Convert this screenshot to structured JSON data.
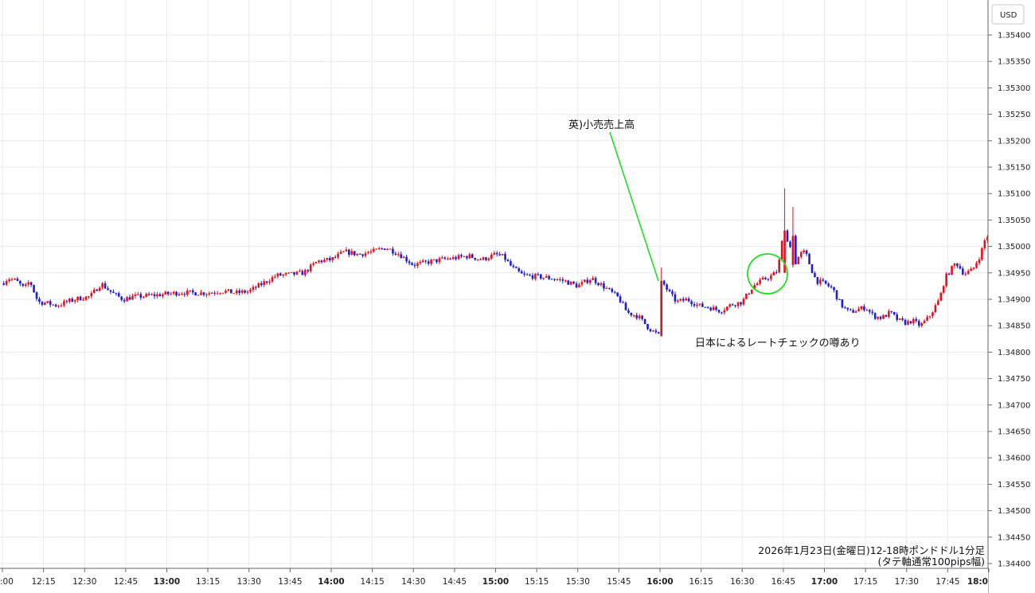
{
  "chart_data": {
    "type": "candlestick",
    "currency": "USD",
    "caption_line1": "2026年1月23日(金曜日)12-18時ポンドドル1分足",
    "caption_line2": "(タテ軸通常100pips幅)",
    "annotations": [
      {
        "text": "英)小売売上高",
        "target_time": "16:00",
        "target_price": 1.3495
      },
      {
        "text": "日本によるレートチェックの噂あり",
        "highlight_time": "16:37",
        "highlight_price": 1.3495
      }
    ],
    "ylim": [
      1.34385,
      1.35425
    ],
    "y_ticks": [
      "1.35400",
      "1.35350",
      "1.35300",
      "1.35250",
      "1.35200",
      "1.35150",
      "1.35100",
      "1.35050",
      "1.35000",
      "1.34950",
      "1.34900",
      "1.34850",
      "1.34800",
      "1.34750",
      "1.34700",
      "1.34650",
      "1.34600",
      "1.34550",
      "1.34500",
      "1.34450",
      "1.34400"
    ],
    "x_ticks": [
      {
        "label": ":00",
        "hour": false
      },
      {
        "label": "12:15",
        "hour": false
      },
      {
        "label": "12:30",
        "hour": false
      },
      {
        "label": "12:45",
        "hour": false
      },
      {
        "label": "13:00",
        "hour": true
      },
      {
        "label": "13:15",
        "hour": false
      },
      {
        "label": "13:30",
        "hour": false
      },
      {
        "label": "13:45",
        "hour": false
      },
      {
        "label": "14:00",
        "hour": true
      },
      {
        "label": "14:15",
        "hour": false
      },
      {
        "label": "14:30",
        "hour": false
      },
      {
        "label": "14:45",
        "hour": false
      },
      {
        "label": "15:00",
        "hour": true
      },
      {
        "label": "15:15",
        "hour": false
      },
      {
        "label": "15:30",
        "hour": false
      },
      {
        "label": "15:45",
        "hour": false
      },
      {
        "label": "16:00",
        "hour": true
      },
      {
        "label": "16:15",
        "hour": false
      },
      {
        "label": "16:30",
        "hour": false
      },
      {
        "label": "16:45",
        "hour": false
      },
      {
        "label": "17:00",
        "hour": true
      },
      {
        "label": "17:15",
        "hour": false
      },
      {
        "label": "17:30",
        "hour": false
      },
      {
        "label": "17:45",
        "hour": false
      },
      {
        "label": "18:0",
        "hour": true
      }
    ],
    "series_points": [
      [
        "12:00",
        1.3493
      ],
      [
        "12:02",
        1.3494
      ],
      [
        "12:05",
        1.34935
      ],
      [
        "12:08",
        1.3492
      ],
      [
        "12:10",
        1.34935
      ],
      [
        "12:13",
        1.34895
      ],
      [
        "12:16",
        1.34893
      ],
      [
        "12:20",
        1.34888
      ],
      [
        "12:24",
        1.34896
      ],
      [
        "12:28",
        1.34902
      ],
      [
        "12:32",
        1.34905
      ],
      [
        "12:36",
        1.3493
      ],
      [
        "12:40",
        1.34912
      ],
      [
        "12:44",
        1.349
      ],
      [
        "12:48",
        1.34905
      ],
      [
        "12:52",
        1.34906
      ],
      [
        "12:56",
        1.34908
      ],
      [
        "13:00",
        1.3491
      ],
      [
        "13:05",
        1.34913
      ],
      [
        "13:10",
        1.34912
      ],
      [
        "13:15",
        1.34912
      ],
      [
        "13:20",
        1.34916
      ],
      [
        "13:25",
        1.34912
      ],
      [
        "13:30",
        1.34915
      ],
      [
        "13:35",
        1.3493
      ],
      [
        "13:40",
        1.34945
      ],
      [
        "13:45",
        1.34947
      ],
      [
        "13:50",
        1.3495
      ],
      [
        "13:55",
        1.34972
      ],
      [
        "14:00",
        1.34975
      ],
      [
        "14:05",
        1.3499
      ],
      [
        "14:10",
        1.34985
      ],
      [
        "14:15",
        1.3499
      ],
      [
        "14:20",
        1.34998
      ],
      [
        "14:25",
        1.34985
      ],
      [
        "14:30",
        1.34965
      ],
      [
        "14:35",
        1.3497
      ],
      [
        "14:40",
        1.34975
      ],
      [
        "14:45",
        1.34978
      ],
      [
        "14:50",
        1.34982
      ],
      [
        "14:55",
        1.34975
      ],
      [
        "15:00",
        1.34985
      ],
      [
        "15:03",
        1.3498
      ],
      [
        "15:06",
        1.3496
      ],
      [
        "15:10",
        1.34945
      ],
      [
        "15:15",
        1.34943
      ],
      [
        "15:20",
        1.3494
      ],
      [
        "15:25",
        1.34935
      ],
      [
        "15:30",
        1.34925
      ],
      [
        "15:35",
        1.3494
      ],
      [
        "15:40",
        1.34922
      ],
      [
        "15:45",
        1.34902
      ],
      [
        "15:48",
        1.34875
      ],
      [
        "15:52",
        1.34868
      ],
      [
        "15:56",
        1.34845
      ],
      [
        "16:00",
        1.3483
      ],
      [
        "16:00",
        1.3494
      ],
      [
        "16:03",
        1.34915
      ],
      [
        "16:06",
        1.34895
      ],
      [
        "16:10",
        1.349
      ],
      [
        "16:14",
        1.34888
      ],
      [
        "16:18",
        1.34885
      ],
      [
        "16:22",
        1.34878
      ],
      [
        "16:26",
        1.3489
      ],
      [
        "16:30",
        1.34895
      ],
      [
        "16:34",
        1.34925
      ],
      [
        "16:38",
        1.34938
      ],
      [
        "16:41",
        1.34945
      ],
      [
        "16:43",
        1.34955
      ],
      [
        "16:45",
        1.35025
      ],
      [
        "16:47",
        1.3501
      ],
      [
        "16:49",
        1.34965
      ],
      [
        "16:51",
        1.34985
      ],
      [
        "16:53",
        1.3499
      ],
      [
        "16:55",
        1.3496
      ],
      [
        "16:57",
        1.34935
      ],
      [
        "17:00",
        1.3493
      ],
      [
        "17:03",
        1.3492
      ],
      [
        "17:06",
        1.3489
      ],
      [
        "17:09",
        1.34875
      ],
      [
        "17:12",
        1.3488
      ],
      [
        "17:15",
        1.34885
      ],
      [
        "17:18",
        1.34868
      ],
      [
        "17:21",
        1.34865
      ],
      [
        "17:24",
        1.34875
      ],
      [
        "17:27",
        1.3486
      ],
      [
        "17:30",
        1.34855
      ],
      [
        "17:32",
        1.3486
      ],
      [
        "17:35",
        1.3485
      ],
      [
        "17:38",
        1.34865
      ],
      [
        "17:42",
        1.349
      ],
      [
        "17:44",
        1.3494
      ],
      [
        "17:46",
        1.34955
      ],
      [
        "17:48",
        1.3497
      ],
      [
        "17:51",
        1.34948
      ],
      [
        "17:54",
        1.34955
      ],
      [
        "17:57",
        1.34985
      ],
      [
        "17:59",
        1.3502
      ]
    ],
    "highlights": [
      [
        "16:00",
        1.3483,
        1.3496,
        1.34835,
        1.34935
      ],
      [
        "16:45",
        1.3495,
        1.3511,
        1.3495,
        1.3503
      ],
      [
        "16:48",
        1.34965,
        1.35075,
        1.3496,
        1.3502
      ]
    ]
  }
}
